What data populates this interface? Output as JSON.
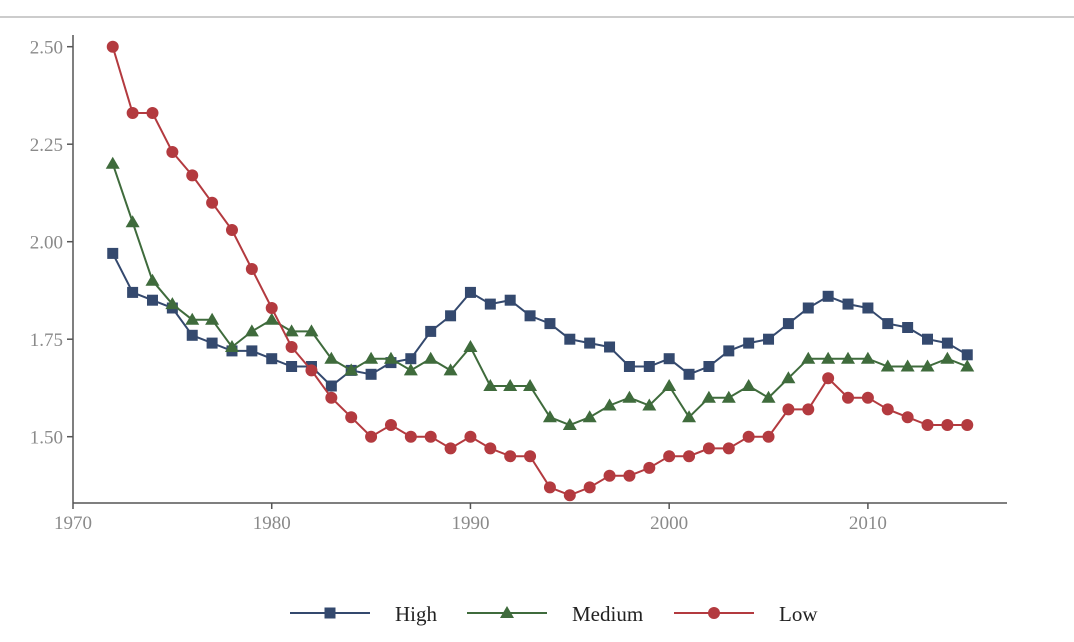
{
  "chart_data": {
    "type": "line",
    "title": "",
    "xlabel": "",
    "ylabel": "",
    "xlim": [
      1970,
      2017
    ],
    "ylim": [
      1.33,
      2.53
    ],
    "x_ticks": [
      1970,
      1980,
      1990,
      2000,
      2010
    ],
    "y_ticks": [
      1.5,
      1.75,
      2.0,
      2.25,
      2.5
    ],
    "y_tick_labels": [
      "1.50",
      "1.75",
      "2.00",
      "2.25",
      "2.50"
    ],
    "grid": false,
    "legend_position": "bottom",
    "x": [
      1972,
      1973,
      1974,
      1975,
      1976,
      1977,
      1978,
      1979,
      1980,
      1981,
      1982,
      1983,
      1984,
      1985,
      1986,
      1987,
      1988,
      1989,
      1990,
      1991,
      1992,
      1993,
      1994,
      1995,
      1996,
      1997,
      1998,
      1999,
      2000,
      2001,
      2002,
      2003,
      2004,
      2005,
      2006,
      2007,
      2008,
      2009,
      2010,
      2011,
      2012,
      2013,
      2014,
      2015
    ],
    "series": [
      {
        "name": "High",
        "color": "#34496e",
        "marker": "square",
        "values": [
          1.97,
          1.87,
          1.85,
          1.83,
          1.76,
          1.74,
          1.72,
          1.72,
          1.7,
          1.68,
          1.68,
          1.63,
          1.67,
          1.66,
          1.69,
          1.7,
          1.77,
          1.81,
          1.87,
          1.84,
          1.85,
          1.81,
          1.79,
          1.75,
          1.74,
          1.73,
          1.68,
          1.68,
          1.7,
          1.66,
          1.68,
          1.72,
          1.74,
          1.75,
          1.79,
          1.83,
          1.86,
          1.84,
          1.83,
          1.79,
          1.78,
          1.75,
          1.74,
          1.71
        ]
      },
      {
        "name": "Medium",
        "color": "#3f6b3c",
        "marker": "triangle",
        "values": [
          2.2,
          2.05,
          1.9,
          1.84,
          1.8,
          1.8,
          1.73,
          1.77,
          1.8,
          1.77,
          1.77,
          1.7,
          1.67,
          1.7,
          1.7,
          1.67,
          1.7,
          1.67,
          1.73,
          1.63,
          1.63,
          1.63,
          1.55,
          1.53,
          1.55,
          1.58,
          1.6,
          1.58,
          1.63,
          1.55,
          1.6,
          1.6,
          1.63,
          1.6,
          1.65,
          1.7,
          1.7,
          1.7,
          1.7,
          1.68,
          1.68,
          1.68,
          1.7,
          1.68
        ]
      },
      {
        "name": "Low",
        "color": "#b33a3f",
        "marker": "circle",
        "values": [
          2.5,
          2.33,
          2.33,
          2.23,
          2.17,
          2.1,
          2.03,
          1.93,
          1.83,
          1.73,
          1.67,
          1.6,
          1.55,
          1.5,
          1.53,
          1.5,
          1.5,
          1.47,
          1.5,
          1.47,
          1.45,
          1.45,
          1.37,
          1.35,
          1.37,
          1.4,
          1.4,
          1.42,
          1.45,
          1.45,
          1.47,
          1.47,
          1.5,
          1.5,
          1.57,
          1.57,
          1.65,
          1.6,
          1.6,
          1.57,
          1.55,
          1.53,
          1.53,
          1.53
        ]
      }
    ]
  }
}
